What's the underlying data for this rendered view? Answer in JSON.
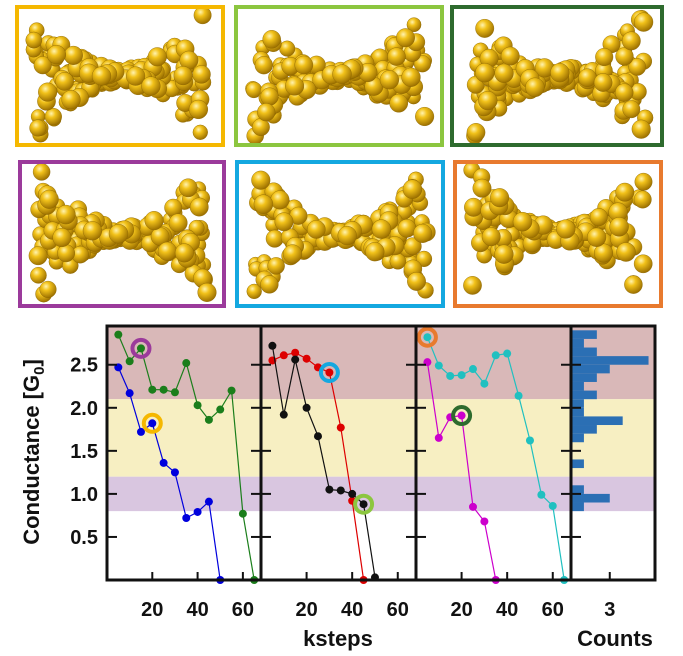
{
  "panels": [
    {
      "frame_color": "#f5b800"
    },
    {
      "frame_color": "#8cc63f"
    },
    {
      "frame_color": "#2e6b2e"
    },
    {
      "frame_color": "#9b3a9b"
    },
    {
      "frame_color": "#14a8e0"
    },
    {
      "frame_color": "#e87a2e"
    }
  ],
  "chart_data": {
    "type": "line",
    "ylabel": "Conductance [G",
    "ylabel_sub": "0",
    "ylabel_close": "]",
    "xlabel": "ksteps",
    "hist_xlabel": "Counts",
    "ylim": [
      0,
      2.95
    ],
    "xlim": [
      0,
      68
    ],
    "yticks": [
      0.5,
      1.0,
      1.5,
      2.0,
      2.5
    ],
    "ytick_labels": [
      "0.5",
      "1.0",
      "1.5",
      "2.0",
      "2.5"
    ],
    "xticks": [
      20,
      40,
      60
    ],
    "xtick_labels": [
      "20",
      "40",
      "60"
    ],
    "hist_xticks": [
      3
    ],
    "hist_xtick_labels": [
      "3"
    ],
    "bands": [
      {
        "from": 2.1,
        "to": 2.95,
        "color": "#d9b8b8"
      },
      {
        "from": 1.2,
        "to": 2.1,
        "color": "#f7efc2"
      },
      {
        "from": 0.8,
        "to": 1.2,
        "color": "#d9c6e0"
      }
    ],
    "subplots": [
      {
        "series": [
          {
            "color": "#0000dd",
            "x": [
              5,
              10,
              15,
              20,
              25,
              30,
              35,
              40,
              45,
              50
            ],
            "y": [
              2.47,
              2.17,
              1.72,
              1.82,
              1.36,
              1.25,
              0.72,
              0.79,
              0.91,
              0.0
            ]
          },
          {
            "color": "#1b7e1b",
            "x": [
              5,
              10,
              15,
              20,
              25,
              30,
              35,
              40,
              45,
              50,
              55,
              60,
              65
            ],
            "y": [
              2.85,
              2.54,
              2.69,
              2.21,
              2.21,
              2.18,
              2.52,
              2.03,
              1.86,
              1.98,
              2.2,
              0.77,
              0.0
            ]
          }
        ],
        "markers": [
          {
            "x": 15,
            "y": 2.69,
            "ring": "#9b3a9b"
          },
          {
            "x": 20,
            "y": 1.82,
            "ring": "#f5b800"
          }
        ]
      },
      {
        "series": [
          {
            "color": "#dd0000",
            "x": [
              5,
              10,
              15,
              20,
              25,
              30,
              35,
              40,
              45
            ],
            "y": [
              2.55,
              2.61,
              2.64,
              2.57,
              2.47,
              2.41,
              1.77,
              0.92,
              0.0
            ]
          },
          {
            "color": "#111111",
            "x": [
              5,
              10,
              15,
              20,
              25,
              30,
              35,
              40,
              45,
              50
            ],
            "y": [
              2.72,
              1.92,
              2.56,
              2.0,
              1.67,
              1.05,
              1.04,
              1.0,
              0.88,
              0.03
            ]
          }
        ],
        "markers": [
          {
            "x": 30,
            "y": 2.41,
            "ring": "#14a8e0"
          },
          {
            "x": 45,
            "y": 0.88,
            "ring": "#8cc63f"
          }
        ]
      },
      {
        "series": [
          {
            "color": "#20c0c0",
            "x": [
              5,
              10,
              15,
              20,
              25,
              30,
              35,
              40,
              45,
              50,
              55,
              60,
              65
            ],
            "y": [
              2.82,
              2.49,
              2.37,
              2.38,
              2.45,
              2.28,
              2.61,
              2.63,
              2.14,
              1.62,
              0.99,
              0.86,
              0.0
            ]
          },
          {
            "color": "#cc00cc",
            "x": [
              5,
              10,
              15,
              20,
              25,
              30,
              35
            ],
            "y": [
              2.53,
              1.65,
              1.89,
              1.91,
              0.85,
              0.68,
              0.0
            ]
          }
        ],
        "markers": [
          {
            "x": 5,
            "y": 2.82,
            "ring": "#e87a2e"
          },
          {
            "x": 20,
            "y": 1.91,
            "ring": "#2e6b2e"
          }
        ]
      }
    ],
    "histogram": {
      "color": "#2b6fb4",
      "xlim": [
        0,
        6.5
      ],
      "bin_width": 0.1,
      "bins": [
        {
          "y": 0.85,
          "count": 1
        },
        {
          "y": 0.95,
          "count": 3
        },
        {
          "y": 1.05,
          "count": 1
        },
        {
          "y": 1.35,
          "count": 1
        },
        {
          "y": 1.65,
          "count": 1
        },
        {
          "y": 1.75,
          "count": 2
        },
        {
          "y": 1.85,
          "count": 4
        },
        {
          "y": 1.95,
          "count": 1
        },
        {
          "y": 2.05,
          "count": 1
        },
        {
          "y": 2.15,
          "count": 2
        },
        {
          "y": 2.25,
          "count": 1
        },
        {
          "y": 2.35,
          "count": 2
        },
        {
          "y": 2.45,
          "count": 3
        },
        {
          "y": 2.55,
          "count": 6
        },
        {
          "y": 2.65,
          "count": 2
        },
        {
          "y": 2.75,
          "count": 1
        },
        {
          "y": 2.85,
          "count": 2
        }
      ]
    }
  }
}
